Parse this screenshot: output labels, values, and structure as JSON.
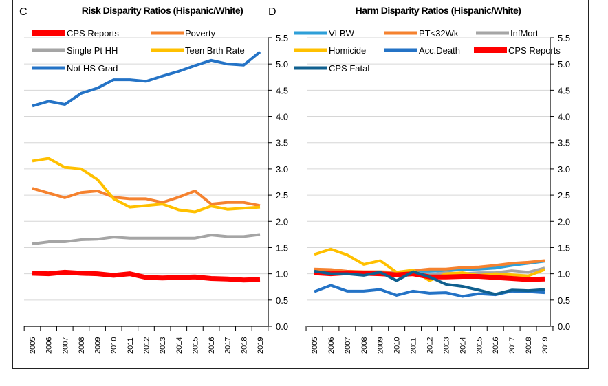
{
  "chart_data": [
    {
      "type": "line",
      "panel_label": "C",
      "title": "Risk Disparity Ratios (Hispanic/White)",
      "x": [
        "2005",
        "2006",
        "2007",
        "2008",
        "2009",
        "2010",
        "2011",
        "2012",
        "2013",
        "2014",
        "2015",
        "2016",
        "2017",
        "2018",
        "2019"
      ],
      "ylim": [
        0,
        5.5
      ],
      "yticks": [
        "0.0",
        "0.5",
        "1.0",
        "1.5",
        "2.0",
        "2.5",
        "3.0",
        "3.5",
        "4.0",
        "4.5",
        "5.0",
        "5.5"
      ],
      "y_axis_side": "right",
      "grid": true,
      "legend": "top",
      "series": [
        {
          "name": "CPS Reports",
          "color": "#ff0000",
          "width": 7,
          "values": [
            1.01,
            1.0,
            1.03,
            1.01,
            1.0,
            0.97,
            1.0,
            0.93,
            0.92,
            0.93,
            0.94,
            0.91,
            0.9,
            0.88,
            0.89
          ]
        },
        {
          "name": "Poverty",
          "color": "#f5822f",
          "width": 4,
          "values": [
            2.63,
            2.54,
            2.45,
            2.55,
            2.58,
            2.46,
            2.43,
            2.43,
            2.36,
            2.46,
            2.58,
            2.33,
            2.36,
            2.36,
            2.3
          ]
        },
        {
          "name": "Single Pt HH",
          "color": "#a5a5a5",
          "width": 4,
          "values": [
            1.57,
            1.61,
            1.61,
            1.65,
            1.66,
            1.7,
            1.68,
            1.68,
            1.68,
            1.68,
            1.68,
            1.74,
            1.71,
            1.71,
            1.75
          ]
        },
        {
          "name": "Teen Brth Rate",
          "color": "#ffc000",
          "width": 4,
          "values": [
            3.15,
            3.2,
            3.03,
            3.0,
            2.8,
            2.43,
            2.27,
            2.3,
            2.33,
            2.22,
            2.18,
            2.29,
            2.23,
            2.25,
            2.27
          ]
        },
        {
          "name": "Not HS Grad",
          "color": "#2473c6",
          "width": 4,
          "values": [
            4.2,
            4.29,
            4.23,
            4.44,
            4.54,
            4.7,
            4.7,
            4.67,
            4.77,
            4.86,
            4.97,
            5.07,
            5.0,
            4.98,
            5.23
          ]
        }
      ]
    },
    {
      "type": "line",
      "panel_label": "D",
      "title": "Harm Disparity Ratios (Hispanic/White)",
      "x": [
        "2005",
        "2006",
        "2007",
        "2008",
        "2009",
        "2010",
        "2011",
        "2012",
        "2013",
        "2014",
        "2015",
        "2016",
        "2017",
        "2018",
        "2019"
      ],
      "ylim": [
        0,
        5.5
      ],
      "yticks": [
        "0.0",
        "0.5",
        "1.0",
        "1.5",
        "2.0",
        "2.5",
        "3.0",
        "3.5",
        "4.0",
        "4.5",
        "5.0",
        "5.5"
      ],
      "y_axis_side": "right",
      "grid": true,
      "legend": "top",
      "series": [
        {
          "name": "VLBW",
          "color": "#2e9fd8",
          "width": 4,
          "values": [
            1.05,
            1.04,
            1.03,
            1.03,
            1.02,
            1.02,
            1.05,
            1.05,
            1.06,
            1.08,
            1.09,
            1.11,
            1.16,
            1.2,
            1.24
          ]
        },
        {
          "name": "PT<32Wk",
          "color": "#f5822f",
          "width": 4,
          "values": [
            1.09,
            1.08,
            1.05,
            1.04,
            1.04,
            1.03,
            1.06,
            1.09,
            1.09,
            1.12,
            1.13,
            1.16,
            1.2,
            1.22,
            1.25
          ]
        },
        {
          "name": "InfMort",
          "color": "#a5a5a5",
          "width": 4,
          "values": [
            1.03,
            1.0,
            1.0,
            1.0,
            1.0,
            1.02,
            1.02,
            0.98,
            1.02,
            1.0,
            1.02,
            1.02,
            1.06,
            1.03,
            1.11
          ]
        },
        {
          "name": "Homicide",
          "color": "#ffc000",
          "width": 4,
          "values": [
            1.37,
            1.47,
            1.36,
            1.18,
            1.25,
            1.03,
            1.07,
            0.87,
            1.0,
            1.02,
            0.97,
            1.0,
            0.98,
            0.96,
            1.08
          ]
        },
        {
          "name": "Acc.Death",
          "color": "#2473c6",
          "width": 4,
          "values": [
            0.66,
            0.78,
            0.67,
            0.67,
            0.7,
            0.59,
            0.67,
            0.63,
            0.64,
            0.57,
            0.62,
            0.6,
            0.67,
            0.66,
            0.64
          ]
        },
        {
          "name": "CPS Reports",
          "color": "#ff0000",
          "width": 7,
          "values": [
            1.02,
            1.0,
            1.02,
            1.01,
            1.0,
            0.98,
            1.0,
            0.94,
            0.94,
            0.95,
            0.95,
            0.93,
            0.91,
            0.89,
            0.9
          ]
        },
        {
          "name": "CPS Fatal",
          "color": "#10608f",
          "width": 4,
          "values": [
            1.05,
            1.0,
            1.0,
            0.97,
            1.03,
            0.87,
            1.04,
            0.94,
            0.8,
            0.76,
            0.69,
            0.61,
            0.69,
            0.68,
            0.7
          ]
        }
      ]
    }
  ]
}
